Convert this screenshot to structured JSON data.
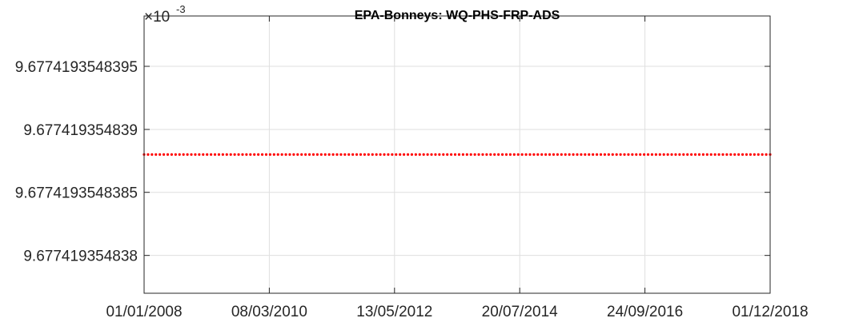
{
  "chart_data": {
    "type": "scatter",
    "title": "EPA-Bonneys: WQ-PHS-FRP-ADS",
    "xlabel": "",
    "ylabel": "",
    "exponent_prefix": "×10",
    "exponent_power": "-3",
    "x_tick_labels": [
      "01/01/2008",
      "08/03/2010",
      "13/05/2012",
      "20/07/2014",
      "24/09/2016",
      "01/12/2018"
    ],
    "y_tick_labels": [
      "9.6774193548395",
      "9.677419354839",
      "9.6774193548385",
      "9.677419354838"
    ],
    "y_tick_values": [
      9.6774193548395,
      9.677419354839,
      9.6774193548385,
      9.677419354838
    ],
    "ylim": [
      9.6774193548377,
      9.6774193548399
    ],
    "xlim": [
      "2008-01-01",
      "2018-12-01"
    ],
    "grid": true,
    "series": [
      {
        "color": "#ff0000",
        "marker": "dot",
        "x_start": "2008-01-01",
        "x_end": "2018-12-01",
        "y_value": 9.6774193548388,
        "point_count": 160
      }
    ]
  }
}
